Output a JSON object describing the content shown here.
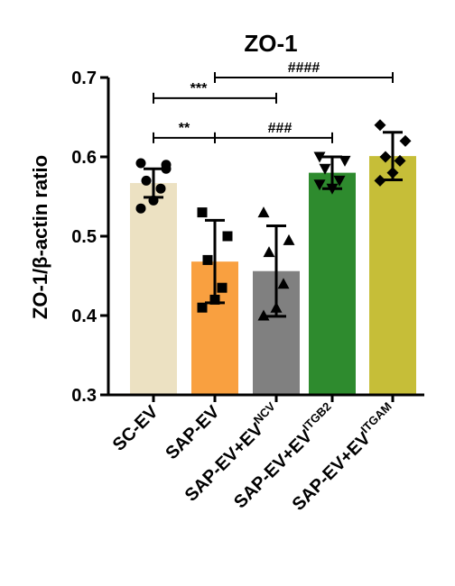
{
  "chart_data": {
    "type": "bar",
    "title": "ZO-1",
    "xlabel": "",
    "ylabel": "ZO-1/β-actin ratio",
    "ylim": [
      0.3,
      0.7
    ],
    "yticks": [
      "0.3",
      "0.4",
      "0.5",
      "0.6",
      "0.7"
    ],
    "ytick_values": [
      0.3,
      0.4,
      0.5,
      0.6,
      0.7
    ],
    "categories": [
      {
        "base": "SC-EV",
        "sup": ""
      },
      {
        "base": "SAP-EV",
        "sup": ""
      },
      {
        "base": "SAP-EV+EV",
        "sup": "NCV"
      },
      {
        "base": "SAP-EV+EV",
        "sup": "ITGB2"
      },
      {
        "base": "SAP-EV+EV",
        "sup": "ITGAM"
      }
    ],
    "values": [
      0.567,
      0.468,
      0.456,
      0.58,
      0.601
    ],
    "errors": [
      0.018,
      0.052,
      0.057,
      0.02,
      0.03
    ],
    "colors": [
      "#ece1c2",
      "#f9a040",
      "#808080",
      "#2e8b2e",
      "#c6be38"
    ],
    "marker_shapes": [
      "circle",
      "square",
      "triangle",
      "triangle-down",
      "diamond"
    ],
    "points": [
      [
        0.592,
        0.585,
        0.57,
        0.56,
        0.545,
        0.535,
        0.59
      ],
      [
        0.53,
        0.5,
        0.47,
        0.435,
        0.42,
        0.41
      ],
      [
        0.53,
        0.495,
        0.48,
        0.44,
        0.41,
        0.4
      ],
      [
        0.6,
        0.595,
        0.585,
        0.57,
        0.56,
        0.565
      ],
      [
        0.64,
        0.62,
        0.6,
        0.595,
        0.58,
        0.57
      ]
    ],
    "significance": [
      {
        "from": 1,
        "to": 4,
        "label": "####",
        "y": 0.7,
        "label_pos": "center"
      },
      {
        "from": 0,
        "to": 2,
        "label": "***",
        "y": 0.674,
        "label_pos": "left"
      },
      {
        "from": 0,
        "to": 1,
        "label": "**",
        "y": 0.624,
        "label_pos": "center"
      },
      {
        "from": 1,
        "to": 3,
        "label": "###",
        "y": 0.624,
        "label_pos": "right"
      }
    ],
    "grid": false,
    "legend": "none"
  }
}
